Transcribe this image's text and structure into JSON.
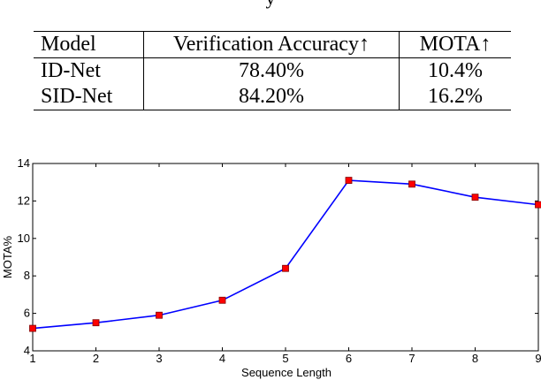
{
  "caption_fragment": "y",
  "table": {
    "headers": [
      "Model",
      "Verification Accuracy↑",
      "MOTA↑"
    ],
    "rows": [
      [
        "ID-Net",
        "78.40%",
        "10.4%"
      ],
      [
        "SID-Net",
        "84.20%",
        "16.2%"
      ]
    ]
  },
  "chart_data": {
    "type": "line",
    "title": "",
    "xlabel": "Sequence Length",
    "ylabel": "MOTA%",
    "x": [
      1,
      2,
      3,
      4,
      5,
      6,
      7,
      8,
      9
    ],
    "series": [
      {
        "values": [
          5.2,
          5.5,
          5.9,
          6.7,
          8.4,
          13.1,
          12.9,
          12.2,
          11.8
        ]
      }
    ],
    "xlim": [
      1,
      9
    ],
    "ylim": [
      4,
      14
    ],
    "xticks": [
      "1",
      "2",
      "3",
      "4",
      "5",
      "6",
      "7",
      "8",
      "9"
    ],
    "yticks": [
      "4",
      "6",
      "8",
      "10",
      "12",
      "14"
    ],
    "grid": false,
    "line_color": "#0000ff",
    "marker_color": "#ff0000",
    "marker": "square"
  }
}
